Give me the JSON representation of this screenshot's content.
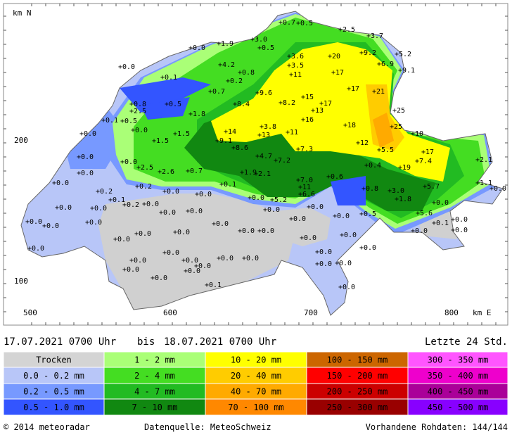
{
  "map": {
    "y_unit": "km N",
    "x_unit": "km E",
    "y_labels": [
      "200",
      "100"
    ],
    "x_labels": [
      "500",
      "600",
      "700",
      "800"
    ],
    "stations": [
      "+0.7",
      "+0.5",
      "+2.5",
      "+3.7",
      "+3.0",
      "+1.9",
      "+0.0",
      "+0.5",
      "+5.2",
      "+9.2",
      "+20",
      "+3.6",
      "+4.2",
      "+6.9",
      "+9.1",
      "+3.5",
      "+17",
      "+11",
      "+0.0",
      "+0.1",
      "+0.8",
      "+0.2",
      "+0.7",
      "+17",
      "+21",
      "+9.6",
      "+15",
      "+0.8",
      "+0.5",
      "+8.4",
      "+8.2",
      "+17",
      "+2.5",
      "+13",
      "+1.8",
      "+0.1",
      "+16",
      "+25",
      "+0.5",
      "+0.0",
      "+18",
      "+25",
      "+10",
      "+14",
      "+3.8",
      "+11",
      "+0.0",
      "+1.5",
      "+13",
      "+1.5",
      "+9.1",
      "+12",
      "+8.6",
      "+5.5",
      "+17",
      "+4.7",
      "+7.3",
      "+0.0",
      "+7.2",
      "+7.4",
      "+2.1",
      "+0.0",
      "+19",
      "+0.4",
      "+2.5",
      "+2.6",
      "+0.7",
      "+1.9",
      "+2.1",
      "+0.6",
      "+0.0",
      "+7.0",
      "+0.1",
      "+0.2",
      "+11",
      "+5.7",
      "+1.1",
      "+0.0",
      "+0.0",
      "+0.8",
      "+3.0",
      "+0.0",
      "+0.2",
      "+0.0",
      "+6.6",
      "+1.8",
      "+0.0",
      "+0.1",
      "+5.2",
      "+0.0",
      "+0.0",
      "+0.0",
      "+0.2",
      "+0.0",
      "+0.0",
      "+0.0",
      "+0.0",
      "+0.0",
      "+0.5",
      "+5.6",
      "+0.0",
      "+0.0",
      "+0.0",
      "+0.0",
      "+0.0",
      "+0.1",
      "+0.0",
      "+0.0",
      "+0.0",
      "+0.0",
      "+0.0",
      "+0.0",
      "+0.0",
      "+0.0",
      "+0.0",
      "+0.0",
      "+0.0",
      "+0.0",
      "+0.0",
      "+0.0",
      "+0.0",
      "+0.0",
      "+0.0",
      "+0.0",
      "+0.0",
      "+0.0",
      "+0.0",
      "+0.0",
      "+0.0",
      "+0.0",
      "+0.0",
      "+0.1",
      "+0.0"
    ]
  },
  "period": {
    "from": "17.07.2021 0700 Uhr",
    "separator": "bis",
    "to": "18.07.2021 0700 Uhr",
    "span": "Letzte 24 Std."
  },
  "legend": {
    "rows": [
      [
        {
          "label": "Trocken",
          "color": "#d4d4d4"
        },
        {
          "label": "1 - 2 mm",
          "color": "#aaff77"
        },
        {
          "label": "10 - 20 mm",
          "color": "#ffff00"
        },
        {
          "label": "100 - 150 mm",
          "color": "#cc6600"
        },
        {
          "label": "300 - 350 mm",
          "color": "#ff55ff"
        }
      ],
      [
        {
          "label": "0.0 - 0.2 mm",
          "color": "#b8c6f8"
        },
        {
          "label": "2 - 4 mm",
          "color": "#44dd22"
        },
        {
          "label": "20 - 40 mm",
          "color": "#ffcc00"
        },
        {
          "label": "150 - 200 mm",
          "color": "#ff0000"
        },
        {
          "label": "350 - 400 mm",
          "color": "#ee00cc"
        }
      ],
      [
        {
          "label": "0.2 - 0.5 mm",
          "color": "#7799ff"
        },
        {
          "label": "4 - 7 mm",
          "color": "#22bb22"
        },
        {
          "label": "40 - 70 mm",
          "color": "#ffaa00"
        },
        {
          "label": "200 - 250 mm",
          "color": "#cc0000"
        },
        {
          "label": "400 - 450 mm",
          "color": "#aa0099"
        }
      ],
      [
        {
          "label": "0.5 - 1.0 mm",
          "color": "#3355ff"
        },
        {
          "label": "7 - 10 mm",
          "color": "#118811"
        },
        {
          "label": "70 - 100 mm",
          "color": "#ff8800"
        },
        {
          "label": "250 - 300 mm",
          "color": "#990000"
        },
        {
          "label": "450 - 500 mm",
          "color": "#8800ff"
        }
      ]
    ]
  },
  "footer": {
    "copyright": "© 2014 meteoradar",
    "source": "Datenquelle: MeteoSchweiz",
    "raw": "Vorhandene Rohdaten: 144/144"
  }
}
